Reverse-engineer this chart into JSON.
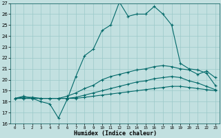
{
  "xlabel": "Humidex (Indice chaleur)",
  "xlim": [
    -0.5,
    23.5
  ],
  "ylim": [
    16,
    27
  ],
  "yticks": [
    16,
    17,
    18,
    19,
    20,
    21,
    22,
    23,
    24,
    25,
    26,
    27
  ],
  "xticks": [
    0,
    1,
    2,
    3,
    4,
    5,
    6,
    7,
    8,
    9,
    10,
    11,
    12,
    13,
    14,
    15,
    16,
    17,
    18,
    19,
    20,
    21,
    22,
    23
  ],
  "xticklabels": [
    "0",
    "1",
    "2",
    "3",
    "4",
    "5",
    "6",
    "7",
    "8",
    "9",
    "10",
    "11",
    "12",
    "13",
    "14",
    "15",
    "16",
    "17",
    "18",
    "19",
    "20",
    "21",
    "22",
    "23"
  ],
  "bg_color": "#c2e0e0",
  "grid_color": "#9ac8c8",
  "line_color": "#006868",
  "lines": [
    {
      "x": [
        0,
        1,
        2,
        3,
        4,
        5,
        6,
        7,
        8,
        9,
        10,
        11,
        12,
        13,
        14,
        15,
        16,
        17,
        18,
        19,
        20,
        21,
        22,
        23
      ],
      "y": [
        18.3,
        18.5,
        18.3,
        18.0,
        17.8,
        16.5,
        18.2,
        20.3,
        22.2,
        22.8,
        24.5,
        25.0,
        27.1,
        25.8,
        26.0,
        26.0,
        26.7,
        26.0,
        25.0,
        21.5,
        21.0,
        20.9,
        20.6,
        19.5
      ]
    },
    {
      "x": [
        0,
        1,
        2,
        3,
        4,
        5,
        6,
        7,
        8,
        9,
        10,
        11,
        12,
        13,
        14,
        15,
        16,
        17,
        18,
        19,
        20,
        21,
        22,
        23
      ],
      "y": [
        18.3,
        18.4,
        18.4,
        18.3,
        18.3,
        18.3,
        18.5,
        18.8,
        19.2,
        19.5,
        20.0,
        20.3,
        20.5,
        20.7,
        20.9,
        21.0,
        21.2,
        21.3,
        21.2,
        21.0,
        20.9,
        20.5,
        20.8,
        20.2
      ]
    },
    {
      "x": [
        0,
        1,
        2,
        3,
        4,
        5,
        6,
        7,
        8,
        9,
        10,
        11,
        12,
        13,
        14,
        15,
        16,
        17,
        18,
        19,
        20,
        21,
        22,
        23
      ],
      "y": [
        18.3,
        18.3,
        18.3,
        18.3,
        18.3,
        18.3,
        18.3,
        18.4,
        18.6,
        18.8,
        19.0,
        19.2,
        19.4,
        19.6,
        19.8,
        19.9,
        20.1,
        20.2,
        20.3,
        20.2,
        19.9,
        19.7,
        19.4,
        19.1
      ]
    },
    {
      "x": [
        0,
        1,
        2,
        3,
        4,
        5,
        6,
        7,
        8,
        9,
        10,
        11,
        12,
        13,
        14,
        15,
        16,
        17,
        18,
        19,
        20,
        21,
        22,
        23
      ],
      "y": [
        18.3,
        18.3,
        18.3,
        18.3,
        18.3,
        18.3,
        18.3,
        18.3,
        18.4,
        18.5,
        18.6,
        18.7,
        18.8,
        18.9,
        19.0,
        19.1,
        19.2,
        19.3,
        19.4,
        19.4,
        19.3,
        19.2,
        19.1,
        19.0
      ]
    }
  ]
}
